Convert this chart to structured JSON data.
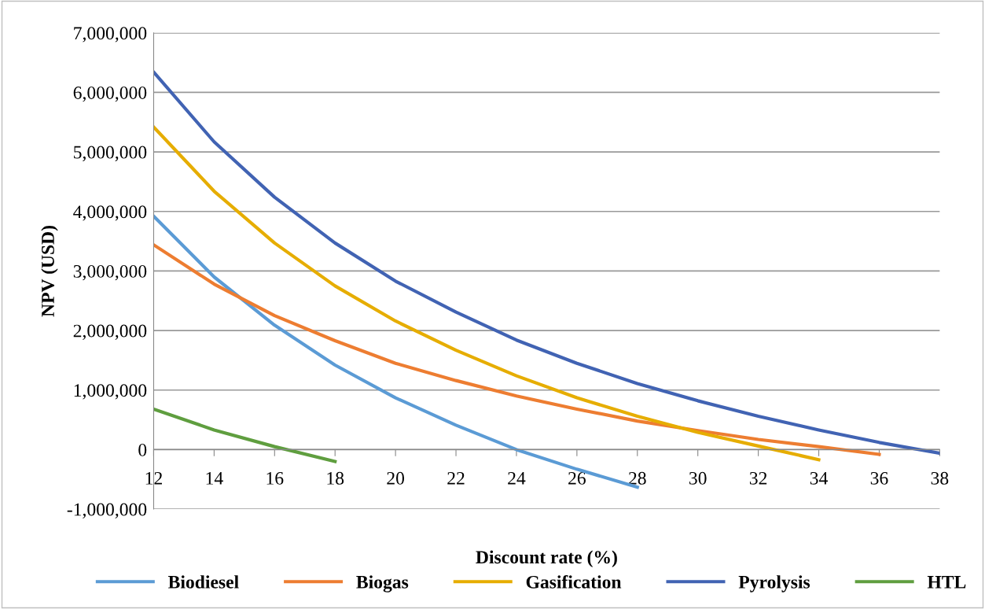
{
  "chart_data": {
    "type": "line",
    "xlabel": "Discount rate (%)",
    "ylabel": "NPV (USD)",
    "x": [
      12,
      14,
      16,
      18,
      20,
      22,
      24,
      26,
      28,
      30,
      32,
      34,
      36,
      38
    ],
    "series": [
      {
        "name": "Biodiesel",
        "color": "#5b9bd5",
        "values": [
          3920000,
          2900000,
          2090000,
          1420000,
          870000,
          410000,
          0,
          -330000,
          -630000,
          null,
          null,
          null,
          null,
          null
        ]
      },
      {
        "name": "Biogas",
        "color": "#ed7d31",
        "values": [
          3440000,
          2780000,
          2250000,
          1830000,
          1450000,
          1160000,
          900000,
          680000,
          480000,
          320000,
          170000,
          50000,
          -80000,
          null
        ]
      },
      {
        "name": "Gasification",
        "color": "#e6ad00",
        "values": [
          5420000,
          4340000,
          3470000,
          2750000,
          2160000,
          1670000,
          1240000,
          870000,
          560000,
          290000,
          60000,
          -170000,
          null,
          null
        ]
      },
      {
        "name": "Pyrolysis",
        "color": "#4163b3",
        "values": [
          6340000,
          5170000,
          4240000,
          3470000,
          2830000,
          2310000,
          1840000,
          1450000,
          1110000,
          820000,
          560000,
          330000,
          120000,
          -60000
        ]
      },
      {
        "name": "HTL",
        "color": "#5f9e3f",
        "values": [
          680000,
          330000,
          50000,
          -200000,
          null,
          null,
          null,
          null,
          null,
          null,
          null,
          null,
          null,
          null
        ]
      }
    ],
    "xlim": [
      12,
      38
    ],
    "xticks": [
      12,
      14,
      16,
      18,
      20,
      22,
      24,
      26,
      28,
      30,
      32,
      34,
      36,
      38
    ],
    "ylim": [
      -1000000,
      7000000
    ],
    "yticks": [
      {
        "value": -1000000,
        "label": "-1,000,000"
      },
      {
        "value": 0,
        "label": "0"
      },
      {
        "value": 1000000,
        "label": "1,000,000"
      },
      {
        "value": 2000000,
        "label": "2,000,000"
      },
      {
        "value": 3000000,
        "label": "3,000,000"
      },
      {
        "value": 4000000,
        "label": "4,000,000"
      },
      {
        "value": 5000000,
        "label": "5,000,000"
      },
      {
        "value": 6000000,
        "label": "6,000,000"
      },
      {
        "value": 7000000,
        "label": "7,000,000"
      }
    ],
    "grid": "y",
    "legend": "bottom",
    "marker": "none",
    "line_style": "solid"
  }
}
